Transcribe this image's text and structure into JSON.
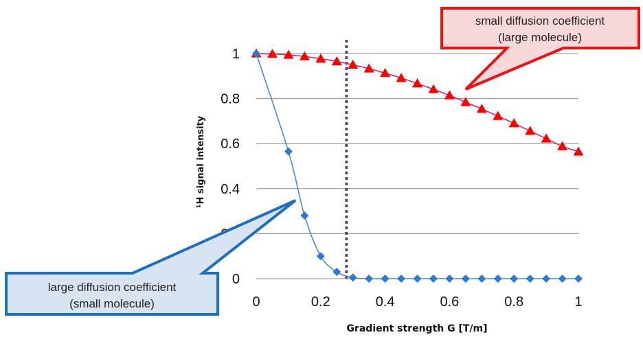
{
  "chart_data": {
    "type": "scatter",
    "title": "",
    "xlabel": "Gradient strength G [T/m]",
    "ylabel": "¹H signal intensity",
    "xlim": [
      0,
      1
    ],
    "ylim": [
      0,
      1
    ],
    "x_ticks": [
      "0",
      "0.2",
      "0.4",
      "0.6",
      "0.8",
      "1"
    ],
    "y_ticks": [
      "0",
      "0.2",
      "0.4",
      "0.6",
      "0.8",
      "1"
    ],
    "grid": "horizontal",
    "legend": "none",
    "series": [
      {
        "marker": "triangle",
        "color": "#ff0000",
        "line_color": "#e0206a",
        "x": [
          0,
          0.05,
          0.1,
          0.15,
          0.2,
          0.25,
          0.3,
          0.35,
          0.4,
          0.45,
          0.5,
          0.55,
          0.6,
          0.65,
          0.7,
          0.75,
          0.8,
          0.85,
          0.9,
          0.95,
          1.0
        ],
        "y": [
          1.0,
          0.998,
          0.994,
          0.987,
          0.977,
          0.965,
          0.95,
          0.933,
          0.913,
          0.891,
          0.867,
          0.841,
          0.814,
          0.784,
          0.754,
          0.722,
          0.69,
          0.656,
          0.622,
          0.588,
          0.564
        ]
      },
      {
        "marker": "diamond",
        "color": "#2e7bd0",
        "line_color": "#4a8ad4",
        "x": [
          0,
          0.1,
          0.15,
          0.2,
          0.25,
          0.3,
          0.35,
          0.4,
          0.45,
          0.5,
          0.55,
          0.6,
          0.65,
          0.7,
          0.75,
          0.8,
          0.85,
          0.9,
          0.95,
          1.0
        ],
        "y": [
          1.0,
          0.565,
          0.28,
          0.1,
          0.03,
          0.005,
          0,
          0,
          0,
          0,
          0,
          0,
          0,
          0,
          0,
          0,
          0,
          0,
          0,
          0
        ]
      }
    ],
    "vertical_marker": {
      "x": 0.28,
      "color": "#5b3f8a",
      "style": "dotted"
    },
    "annotations": [
      {
        "text_lines": [
          "small diffusion coefficient",
          "(large molecule)"
        ],
        "points_to": {
          "x": 0.65,
          "y": 0.82
        },
        "border_color": "#ee1111",
        "fill": "#f7d9d9"
      },
      {
        "text_lines": [
          "large diffusion coefficient",
          "(small molecule)"
        ],
        "points_to": {
          "x": 0.13,
          "y": 0.35
        },
        "border_color": "#1f6fc0",
        "fill": "#d8e4f2"
      }
    ]
  }
}
